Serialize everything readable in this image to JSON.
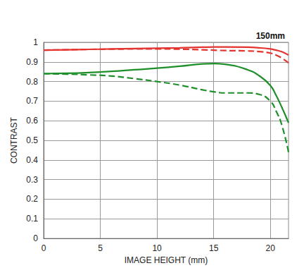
{
  "chart_data": {
    "type": "line",
    "title": "150mm",
    "x_label": "IMAGE HEIGHT (mm)",
    "y_label": "CONTRAST",
    "x": [
      0,
      2,
      4,
      6,
      8,
      10,
      12,
      14,
      15,
      16,
      18,
      19,
      20,
      20.5,
      21,
      21.6
    ],
    "series": [
      {
        "color": "#e3342f",
        "line_style": "solid",
        "values": [
          0.96,
          0.962,
          0.964,
          0.966,
          0.968,
          0.97,
          0.972,
          0.975,
          0.976,
          0.976,
          0.975,
          0.972,
          0.966,
          0.96,
          0.952,
          0.935
        ]
      },
      {
        "color": "#e3342f",
        "line_style": "dashed",
        "values": [
          0.96,
          0.962,
          0.964,
          0.965,
          0.966,
          0.966,
          0.965,
          0.962,
          0.96,
          0.958,
          0.956,
          0.953,
          0.945,
          0.935,
          0.92,
          0.895
        ]
      },
      {
        "color": "#1f8f2b",
        "line_style": "solid",
        "values": [
          0.84,
          0.842,
          0.846,
          0.852,
          0.86,
          0.868,
          0.878,
          0.89,
          0.892,
          0.888,
          0.86,
          0.83,
          0.78,
          0.73,
          0.67,
          0.59
        ]
      },
      {
        "color": "#1f8f2b",
        "line_style": "dashed",
        "values": [
          0.84,
          0.838,
          0.834,
          0.828,
          0.815,
          0.8,
          0.782,
          0.758,
          0.748,
          0.742,
          0.742,
          0.735,
          0.7,
          0.65,
          0.58,
          0.44
        ]
      }
    ],
    "xlim": [
      0,
      21.6
    ],
    "xticks": [
      0,
      5,
      10,
      15,
      20
    ],
    "ylim": [
      0,
      1
    ],
    "yticks": [
      0,
      0.1,
      0.2,
      0.3,
      0.4,
      0.5,
      0.6,
      0.7,
      0.8,
      0.9,
      1
    ],
    "grid": true
  }
}
